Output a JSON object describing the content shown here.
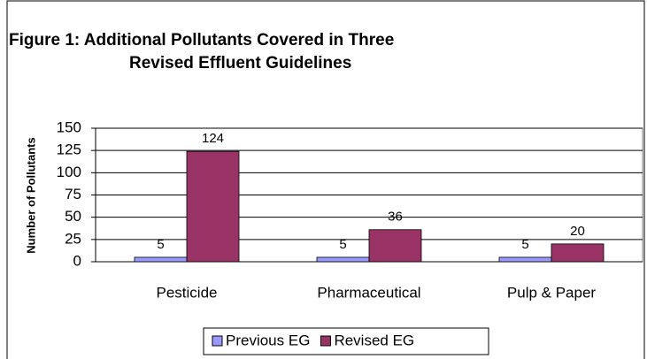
{
  "chart_data": {
    "type": "bar",
    "title": [
      "Figure 1: Additional Pollutants Covered in Three",
      "Revised Effluent Guidelines"
    ],
    "y_label": "Number of Pollutants",
    "categories": [
      "Pesticide",
      "Pharmaceutical",
      "Pulp & Paper"
    ],
    "series": [
      {
        "name": "Previous EG",
        "color": "#9999ff",
        "values": [
          5,
          5,
          5
        ]
      },
      {
        "name": "Revised EG",
        "color": "#993366",
        "values": [
          124,
          36,
          20
        ]
      }
    ],
    "ylim": [
      0,
      150
    ],
    "yticks": [
      0,
      25,
      50,
      75,
      100,
      125,
      150
    ],
    "grid": true,
    "legend": "bottom"
  }
}
